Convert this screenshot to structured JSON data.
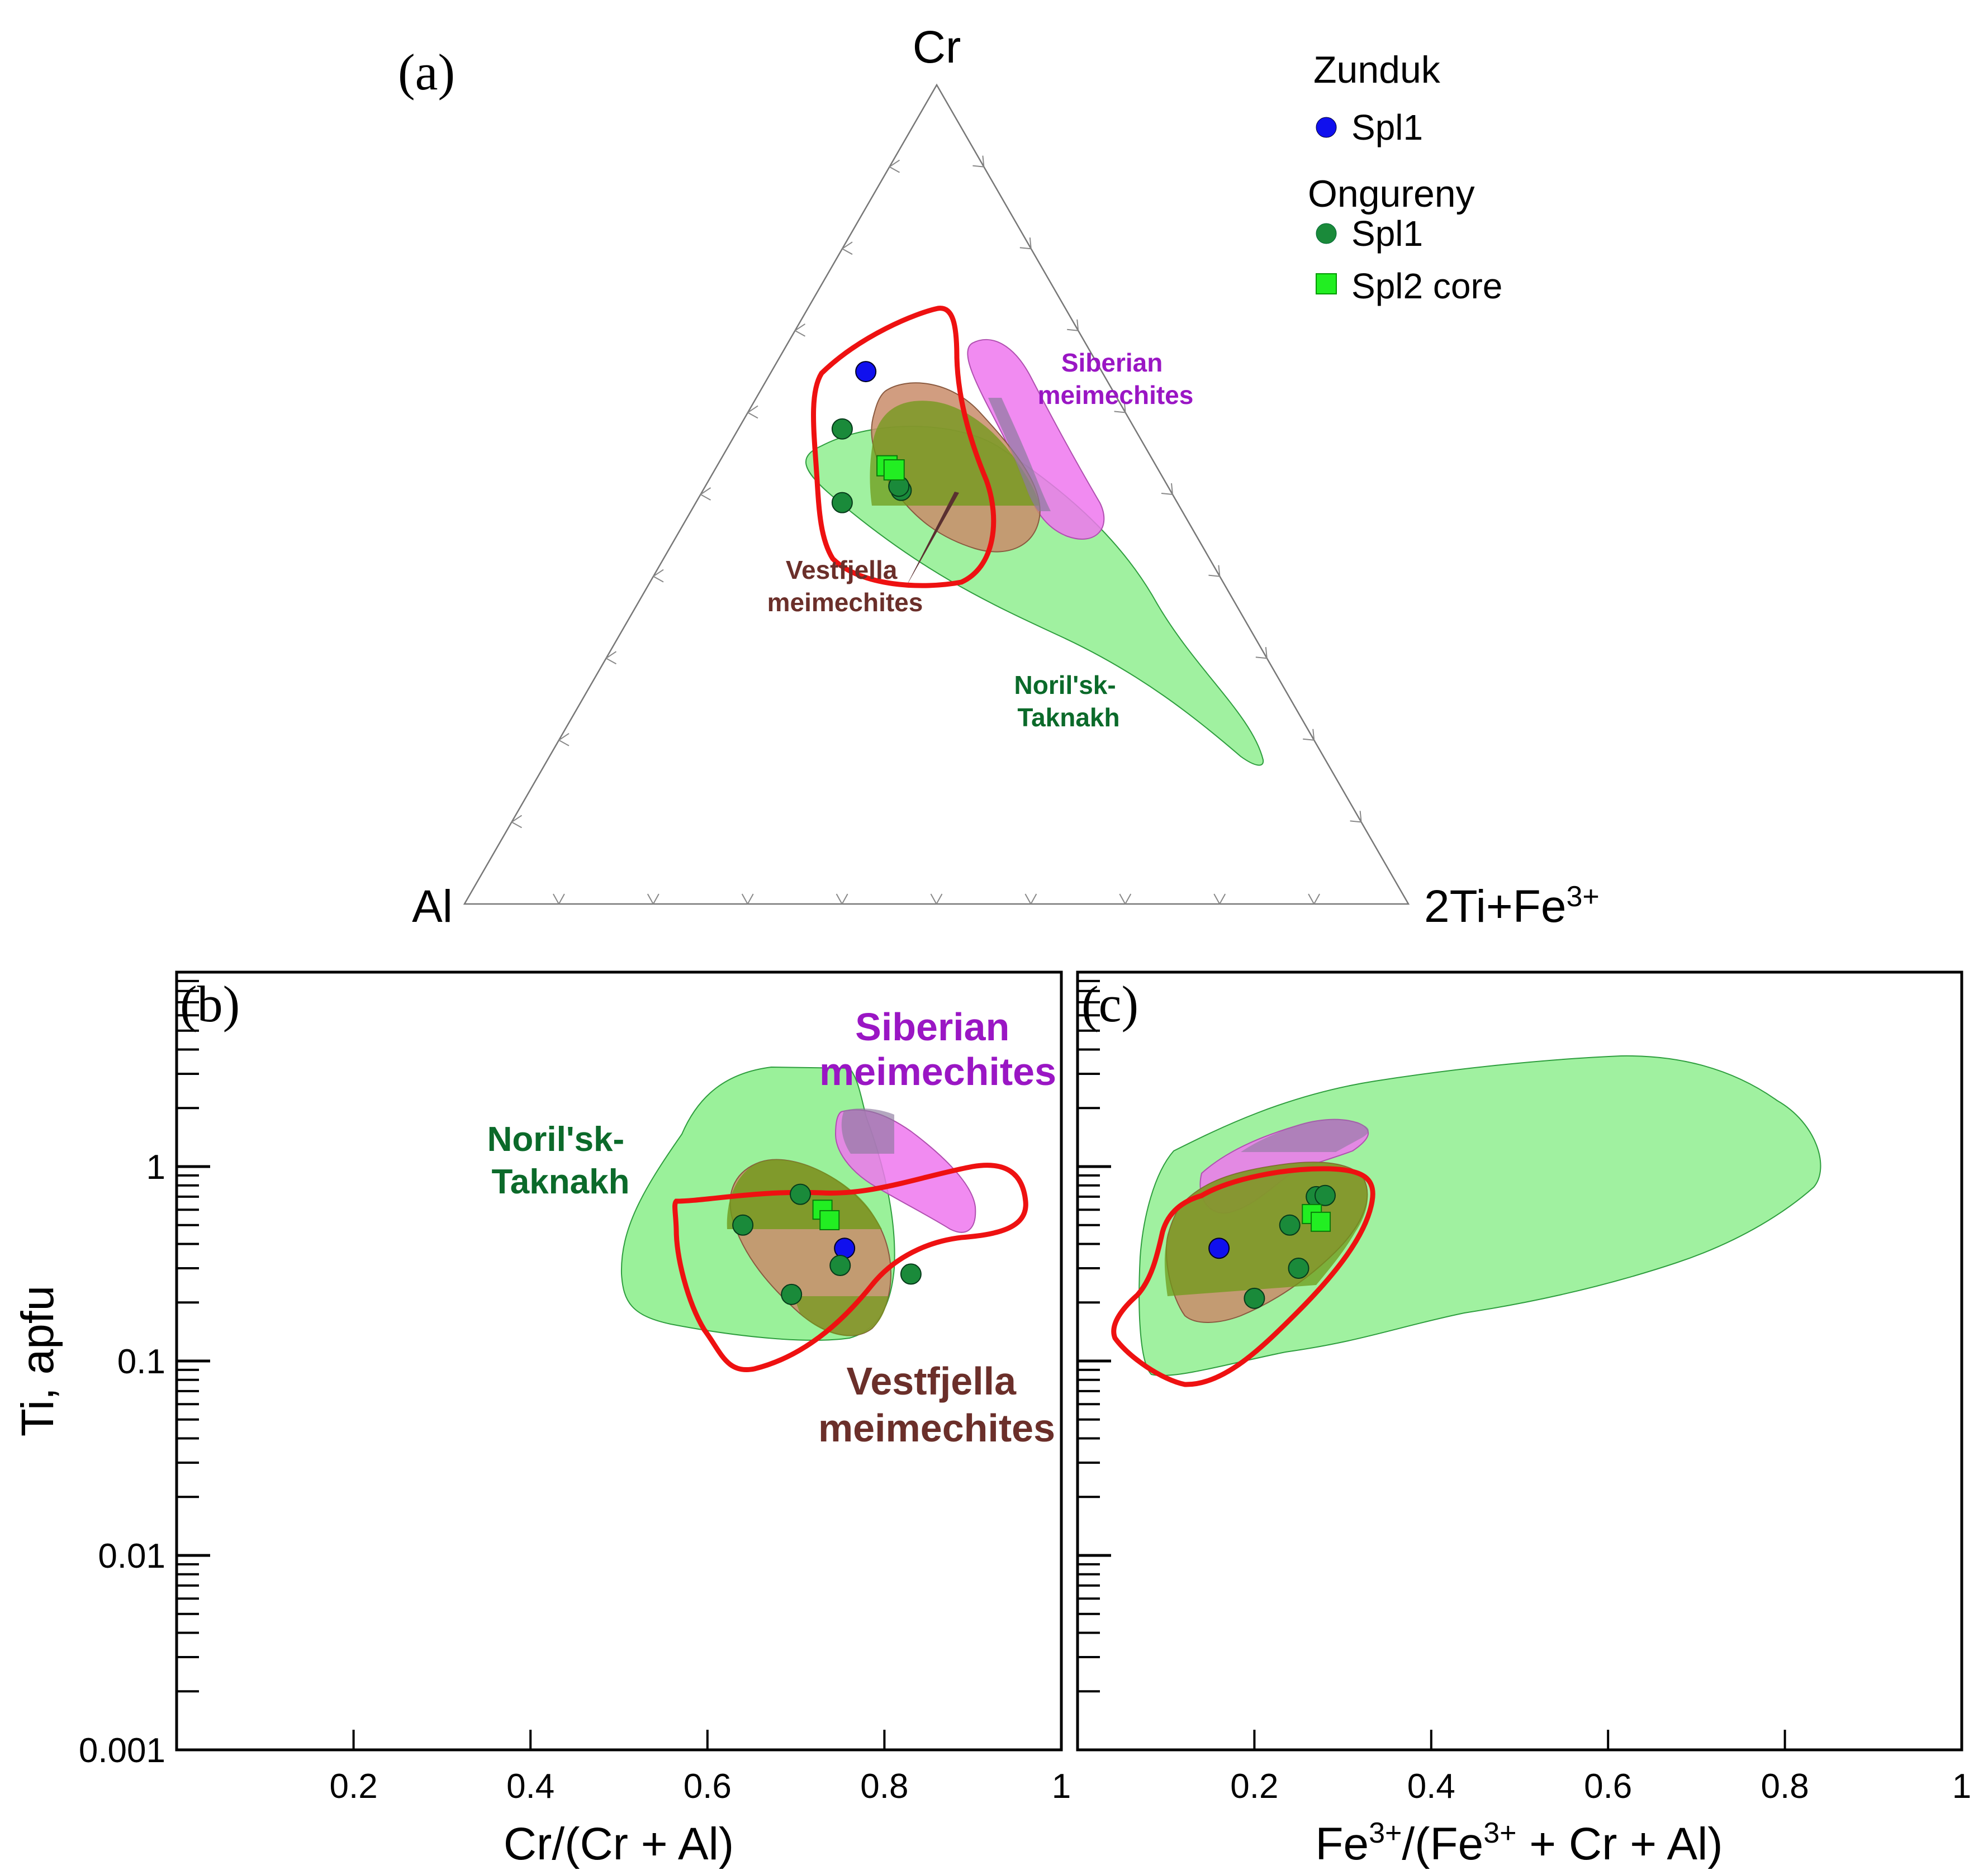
{
  "figure": {
    "legend": {
      "group1": "Zunduk",
      "group1_item": "Spl1",
      "group2": "Ongureny",
      "group2_item1": "Spl1",
      "group2_item2": "Spl2 core"
    }
  },
  "colors": {
    "zunduk_spl1": "#1010ee",
    "ongureny_spl1": "#1a8a3a",
    "ongureny_spl2": "#22ee22",
    "norilsk_field": "#88ee88",
    "siberian_field": "#ee77ee",
    "vestfjella_field": "#c98c6a",
    "overlap_field": "#6f9a1a",
    "vestfjella_outline": "#ee1111",
    "siberian_label": "#9a16c4",
    "vestfjella_label": "#6b2f2a",
    "norilsk_label": "#0b6a2a"
  },
  "chart_data": [
    {
      "panel": "(a)",
      "type": "ternary",
      "apices": {
        "top": "Cr",
        "left": "Al",
        "right_main": "2Ti+Fe",
        "right_sup": "3+"
      },
      "tick_fractions": [
        0.1,
        0.2,
        0.3,
        0.4,
        0.5,
        0.6,
        0.7,
        0.8,
        0.9
      ],
      "fields": [
        "Siberian meimechites",
        "Vestfjella meimechites",
        "Noril'sk-Taknakh"
      ],
      "field_labels": {
        "siberian": [
          "Siberian",
          "meimechites"
        ],
        "vestfjella": [
          "Vestfjella",
          "meimechites"
        ],
        "norilsk": [
          "Noril'sk-",
          "Taknakh"
        ]
      },
      "series": [
        {
          "name": "Zunduk Spl1",
          "marker": "circle",
          "points": [
            {
              "cr": 0.65,
              "al": 0.25,
              "fe": 0.1
            }
          ]
        },
        {
          "name": "Ongureny Spl1",
          "marker": "circle",
          "points": [
            {
              "cr": 0.58,
              "al": 0.31,
              "fe": 0.11
            },
            {
              "cr": 0.505,
              "al": 0.285,
              "fe": 0.21
            },
            {
              "cr": 0.51,
              "al": 0.285,
              "fe": 0.205
            },
            {
              "cr": 0.49,
              "al": 0.355,
              "fe": 0.155
            }
          ]
        },
        {
          "name": "Ongureny Spl2 core",
          "marker": "square",
          "points": [
            {
              "cr": 0.535,
              "al": 0.285,
              "fe": 0.18
            },
            {
              "cr": 0.53,
              "al": 0.28,
              "fe": 0.19
            }
          ]
        }
      ]
    },
    {
      "panel": "(b)",
      "type": "scatter",
      "xlabel": "Cr/(Cr + Al)",
      "ylabel": "Ti, apfu",
      "xlim": [
        0,
        1
      ],
      "ylim": [
        0.001,
        10
      ],
      "yscale": "log",
      "xtick_labels": [
        "0.2",
        "0.4",
        "0.6",
        "0.8",
        "1"
      ],
      "ytick_labels": [
        "1",
        "0.1",
        "0.01",
        "0.001"
      ],
      "field_labels": {
        "siberian": [
          "Siberian",
          "meimechites"
        ],
        "vestfjella": [
          "Vestfjella",
          "meimechites"
        ],
        "norilsk": [
          "Noril'sk-",
          "Taknakh"
        ]
      },
      "series": [
        {
          "name": "Zunduk Spl1",
          "marker": "circle",
          "points": [
            {
              "x": 0.755,
              "y": 0.38
            }
          ]
        },
        {
          "name": "Ongureny Spl1",
          "marker": "circle",
          "points": [
            {
              "x": 0.705,
              "y": 0.72
            },
            {
              "x": 0.64,
              "y": 0.5
            },
            {
              "x": 0.75,
              "y": 0.31
            },
            {
              "x": 0.695,
              "y": 0.22
            },
            {
              "x": 0.83,
              "y": 0.28
            }
          ]
        },
        {
          "name": "Ongureny Spl2 core",
          "marker": "square",
          "points": [
            {
              "x": 0.73,
              "y": 0.6
            },
            {
              "x": 0.738,
              "y": 0.53
            }
          ]
        }
      ]
    },
    {
      "panel": "(c)",
      "type": "scatter",
      "xlabel_main": "Fe",
      "xlabel_sup1": "3+",
      "xlabel_mid": "/(Fe",
      "xlabel_sup2": "3+",
      "xlabel_tail": " + Cr + Al)",
      "xlim": [
        0,
        1
      ],
      "ylim": [
        0.001,
        10
      ],
      "yscale": "log",
      "xtick_labels": [
        "0.2",
        "0.4",
        "0.6",
        "0.8",
        "1"
      ],
      "series": [
        {
          "name": "Zunduk Spl1",
          "marker": "circle",
          "points": [
            {
              "x": 0.16,
              "y": 0.38
            }
          ]
        },
        {
          "name": "Ongureny Spl1",
          "marker": "circle",
          "points": [
            {
              "x": 0.27,
              "y": 0.7
            },
            {
              "x": 0.28,
              "y": 0.71
            },
            {
              "x": 0.24,
              "y": 0.5
            },
            {
              "x": 0.25,
              "y": 0.3
            },
            {
              "x": 0.2,
              "y": 0.21
            }
          ]
        },
        {
          "name": "Ongureny Spl2 core",
          "marker": "square",
          "points": [
            {
              "x": 0.265,
              "y": 0.57
            },
            {
              "x": 0.275,
              "y": 0.52
            }
          ]
        }
      ]
    }
  ]
}
